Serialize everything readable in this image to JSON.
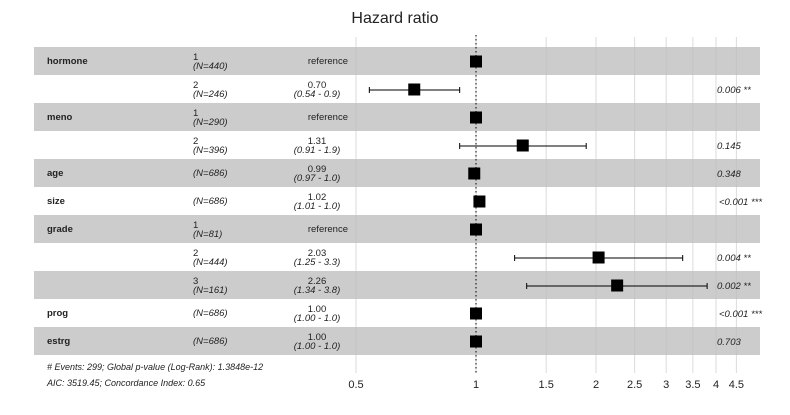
{
  "chart_data": {
    "type": "forest",
    "title": "Hazard ratio",
    "x_scale": "log",
    "xlim": [
      0.5,
      4.8
    ],
    "x_ticks": [
      "0.5",
      "1",
      "1.5",
      "2",
      "2.5",
      "3",
      "3.5",
      "4",
      "4.5"
    ],
    "reference_line": 1,
    "grid": true,
    "colors": {
      "band": "#cccccc",
      "marker": "#000000",
      "grid": "#bdbdbd"
    },
    "rows": [
      {
        "var": "hormone",
        "level": "1",
        "n": "(N=440)",
        "est_text": "reference",
        "ci_text": "",
        "hr": 1,
        "lo": null,
        "hi": null,
        "p": ""
      },
      {
        "var": "",
        "level": "2",
        "n": "(N=246)",
        "est_text": "0.70",
        "ci_text": "(0.54 - 0.9)",
        "hr": 0.7,
        "lo": 0.54,
        "hi": 0.91,
        "p": "0.006 **"
      },
      {
        "var": "meno",
        "level": "1",
        "n": "(N=290)",
        "est_text": "reference",
        "ci_text": "",
        "hr": 1,
        "lo": null,
        "hi": null,
        "p": ""
      },
      {
        "var": "",
        "level": "2",
        "n": "(N=396)",
        "est_text": "1.31",
        "ci_text": "(0.91 - 1.9)",
        "hr": 1.31,
        "lo": 0.91,
        "hi": 1.89,
        "p": "0.145"
      },
      {
        "var": "age",
        "level": "",
        "n": "(N=686)",
        "est_text": "0.99",
        "ci_text": "(0.97 - 1.0)",
        "hr": 0.99,
        "lo": 0.97,
        "hi": 1.01,
        "p": "0.348"
      },
      {
        "var": "size",
        "level": "",
        "n": "(N=686)",
        "est_text": "1.02",
        "ci_text": "(1.01 - 1.0)",
        "hr": 1.02,
        "lo": 1.01,
        "hi": 1.02,
        "p": "<0.001 ***"
      },
      {
        "var": "grade",
        "level": "1",
        "n": "(N=81)",
        "est_text": "reference",
        "ci_text": "",
        "hr": 1,
        "lo": null,
        "hi": null,
        "p": ""
      },
      {
        "var": "",
        "level": "2",
        "n": "(N=444)",
        "est_text": "2.03",
        "ci_text": "(1.25 - 3.3)",
        "hr": 2.03,
        "lo": 1.25,
        "hi": 3.3,
        "p": "0.004 **"
      },
      {
        "var": "",
        "level": "3",
        "n": "(N=161)",
        "est_text": "2.26",
        "ci_text": "(1.34 - 3.8)",
        "hr": 2.26,
        "lo": 1.34,
        "hi": 3.8,
        "p": "0.002 **"
      },
      {
        "var": "prog",
        "level": "",
        "n": "(N=686)",
        "est_text": "1.00",
        "ci_text": "(1.00 - 1.0)",
        "hr": 1.0,
        "lo": 1.0,
        "hi": 1.0,
        "p": "<0.001 ***"
      },
      {
        "var": "estrg",
        "level": "",
        "n": "(N=686)",
        "est_text": "1.00",
        "ci_text": "(1.00 - 1.0)",
        "hr": 1.0,
        "lo": 1.0,
        "hi": 1.0,
        "p": "0.703"
      }
    ],
    "footnotes": [
      "# Events: 299; Global p-value (Log-Rank): 1.3848e-12",
      "AIC: 3519.45; Concordance Index: 0.65"
    ]
  }
}
